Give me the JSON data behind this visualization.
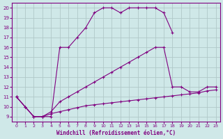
{
  "xlabel": "Windchill (Refroidissement éolien,°C)",
  "bg_color": "#cfe8e8",
  "line_color": "#800080",
  "grid_color": "#b0c8c8",
  "xlim": [
    -0.5,
    23.5
  ],
  "ylim": [
    8.5,
    20.5
  ],
  "yticks": [
    9,
    10,
    11,
    12,
    13,
    14,
    15,
    16,
    17,
    18,
    19,
    20
  ],
  "xticks": [
    0,
    1,
    2,
    3,
    4,
    5,
    6,
    7,
    8,
    9,
    10,
    11,
    12,
    13,
    14,
    15,
    16,
    17,
    18,
    19,
    20,
    21,
    22,
    23
  ],
  "curve1_x": [
    0,
    1,
    2,
    3,
    4,
    5,
    6,
    7,
    8,
    9,
    10,
    11,
    12,
    13,
    14,
    15,
    16,
    17,
    18
  ],
  "curve1_y": [
    11,
    10,
    9,
    9,
    9,
    16,
    16,
    17,
    18,
    19.5,
    20,
    20,
    19.5,
    20,
    20,
    20,
    20,
    19.5,
    17.5
  ],
  "curve2_x": [
    0,
    1,
    2,
    3,
    4,
    5,
    6,
    7,
    8,
    9,
    10,
    11,
    12,
    13,
    14,
    15,
    16,
    17,
    18,
    19,
    20,
    21,
    22,
    23
  ],
  "curve2_y": [
    11,
    10,
    9,
    9,
    9.5,
    10.5,
    11,
    11.5,
    12,
    12.5,
    13,
    13.5,
    14,
    14.5,
    15,
    15.5,
    16,
    16,
    12,
    12,
    11.5,
    11.5,
    12,
    12
  ],
  "curve3_x": [
    0,
    1,
    2,
    3,
    4,
    5,
    6,
    7,
    8,
    9,
    10,
    11,
    12,
    13,
    14,
    15,
    16,
    17,
    18,
    19,
    20,
    21,
    22,
    23
  ],
  "curve3_y": [
    11,
    10,
    9,
    9,
    9.3,
    9.5,
    9.7,
    9.9,
    10.1,
    10.2,
    10.3,
    10.4,
    10.5,
    10.6,
    10.7,
    10.8,
    10.9,
    11.0,
    11.1,
    11.2,
    11.3,
    11.4,
    11.6,
    11.7
  ]
}
